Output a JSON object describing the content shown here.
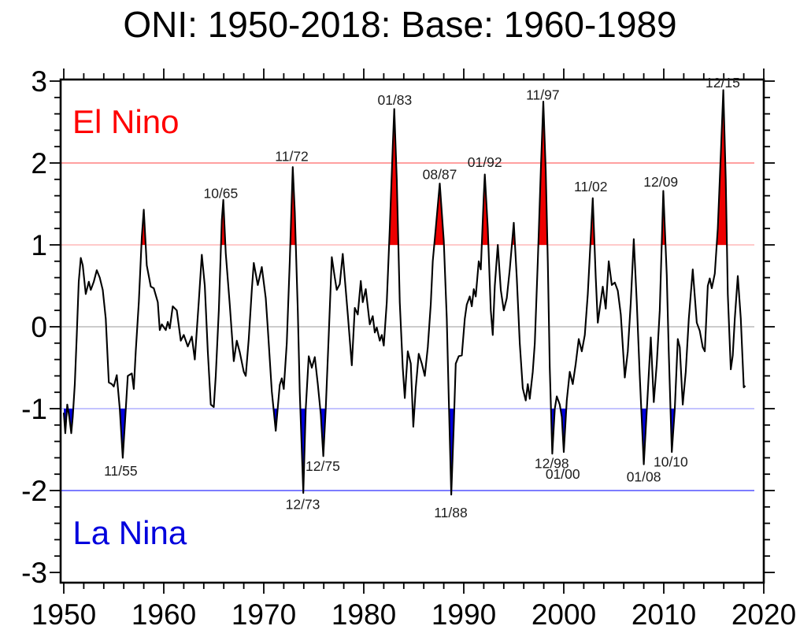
{
  "title": "ONI: 1950-2018: Base: 1960-1989",
  "chart_data": {
    "type": "line",
    "title": "ONI: 1950-2018: Base: 1960-1989",
    "xlabel": "",
    "ylabel": "",
    "grid": false,
    "x_axis": {
      "range": [
        1949.7,
        2020
      ],
      "major_ticks": [
        1950,
        1960,
        1970,
        1980,
        1990,
        2000,
        2010,
        2020
      ],
      "minor_step": 2
    },
    "y_axis": {
      "range": [
        -3.13,
        3.02
      ],
      "major_ticks": [
        -3,
        -2,
        -1,
        0,
        1,
        2,
        3
      ],
      "minor_step": 0.2
    },
    "thresholds": {
      "el_nino": 1,
      "la_nina": -1
    },
    "colors": {
      "line": "#000000",
      "el_nino_fill": "#ee0000",
      "la_nina_fill": "#0000dd",
      "el_nino_text": "#ff0000",
      "la_nina_text": "#0000dd",
      "annotation_text": "#1c1c1c",
      "axis": "#000000"
    },
    "reference_lines": [
      {
        "y": 2,
        "color": "#ff8080"
      },
      {
        "y": 1,
        "color": "#ffb8b8"
      },
      {
        "y": 0,
        "color": "#bcbcbc"
      },
      {
        "y": -1,
        "color": "#b0b0ff"
      },
      {
        "y": -2,
        "color": "#5050ff"
      }
    ],
    "region_labels": [
      {
        "id": "el-nino",
        "text": "El Nino",
        "x": 1956.2,
        "y": 2.5,
        "color": "#ff0000"
      },
      {
        "id": "la-nina",
        "text": "La Nina",
        "x": 1956.6,
        "y": -2.52,
        "color": "#0000dd"
      }
    ],
    "annotations": [
      {
        "text": "10/65",
        "x": 1965.7,
        "y": 1.63
      },
      {
        "text": "11/72",
        "x": 1972.8,
        "y": 2.08
      },
      {
        "text": "01/83",
        "x": 1983.1,
        "y": 2.77
      },
      {
        "text": "08/87",
        "x": 1987.6,
        "y": 1.86
      },
      {
        "text": "01/92",
        "x": 1992.1,
        "y": 2.01
      },
      {
        "text": "11/97",
        "x": 1997.9,
        "y": 2.83
      },
      {
        "text": "11/02",
        "x": 2002.7,
        "y": 1.71
      },
      {
        "text": "12/09",
        "x": 2009.7,
        "y": 1.77
      },
      {
        "text": "12/15",
        "x": 2015.9,
        "y": 2.98
      },
      {
        "text": "11/55",
        "x": 1955.7,
        "y": -1.76
      },
      {
        "text": "12/73",
        "x": 1973.9,
        "y": -2.17
      },
      {
        "text": "12/75",
        "x": 1975.9,
        "y": -1.7
      },
      {
        "text": "11/88",
        "x": 1988.7,
        "y": -2.27
      },
      {
        "text": "12/98",
        "x": 1998.8,
        "y": -1.67
      },
      {
        "text": "01/00",
        "x": 1999.9,
        "y": -1.8
      },
      {
        "text": "01/08",
        "x": 2008.0,
        "y": -1.83
      },
      {
        "text": "10/10",
        "x": 2010.7,
        "y": -1.65
      }
    ],
    "series": [
      {
        "name": "ONI",
        "points": [
          [
            1950.0,
            -1.05
          ],
          [
            1950.15,
            -1.3
          ],
          [
            1950.35,
            -0.95
          ],
          [
            1950.55,
            -1.1
          ],
          [
            1950.75,
            -1.3
          ],
          [
            1950.9,
            -1.1
          ],
          [
            1951.1,
            -0.7
          ],
          [
            1951.3,
            -0.1
          ],
          [
            1951.5,
            0.55
          ],
          [
            1951.7,
            0.84
          ],
          [
            1951.9,
            0.75
          ],
          [
            1952.2,
            0.4
          ],
          [
            1952.5,
            0.55
          ],
          [
            1952.7,
            0.45
          ],
          [
            1953.0,
            0.55
          ],
          [
            1953.3,
            0.69
          ],
          [
            1953.6,
            0.6
          ],
          [
            1953.9,
            0.45
          ],
          [
            1954.2,
            0.1
          ],
          [
            1954.5,
            -0.68
          ],
          [
            1954.8,
            -0.7
          ],
          [
            1955.0,
            -0.73
          ],
          [
            1955.3,
            -0.59
          ],
          [
            1955.6,
            -1.0
          ],
          [
            1955.9,
            -1.6
          ],
          [
            1956.1,
            -1.2
          ],
          [
            1956.4,
            -0.6
          ],
          [
            1956.8,
            -0.57
          ],
          [
            1957.0,
            -0.76
          ],
          [
            1957.2,
            -0.3
          ],
          [
            1957.5,
            0.3
          ],
          [
            1957.8,
            1.1
          ],
          [
            1958.0,
            1.43
          ],
          [
            1958.3,
            0.75
          ],
          [
            1958.7,
            0.49
          ],
          [
            1959.0,
            0.47
          ],
          [
            1959.4,
            0.3
          ],
          [
            1959.6,
            -0.04
          ],
          [
            1959.8,
            0.03
          ],
          [
            1960.2,
            -0.04
          ],
          [
            1960.4,
            0.06
          ],
          [
            1960.6,
            -0.02
          ],
          [
            1960.9,
            0.25
          ],
          [
            1961.3,
            0.2
          ],
          [
            1961.7,
            -0.17
          ],
          [
            1962.0,
            -0.1
          ],
          [
            1962.4,
            -0.24
          ],
          [
            1962.8,
            -0.12
          ],
          [
            1963.1,
            -0.4
          ],
          [
            1963.5,
            0.3
          ],
          [
            1963.8,
            0.88
          ],
          [
            1964.1,
            0.5
          ],
          [
            1964.4,
            -0.3
          ],
          [
            1964.7,
            -0.95
          ],
          [
            1965.0,
            -0.98
          ],
          [
            1965.2,
            -0.6
          ],
          [
            1965.5,
            0.2
          ],
          [
            1965.8,
            1.3
          ],
          [
            1965.95,
            1.55
          ],
          [
            1966.2,
            0.9
          ],
          [
            1966.6,
            0.27
          ],
          [
            1967.0,
            -0.42
          ],
          [
            1967.3,
            -0.17
          ],
          [
            1967.6,
            -0.31
          ],
          [
            1968.0,
            -0.55
          ],
          [
            1968.2,
            -0.6
          ],
          [
            1968.5,
            -0.15
          ],
          [
            1968.8,
            0.45
          ],
          [
            1969.0,
            0.78
          ],
          [
            1969.4,
            0.51
          ],
          [
            1969.8,
            0.73
          ],
          [
            1970.2,
            0.35
          ],
          [
            1970.4,
            -0.02
          ],
          [
            1970.8,
            -0.79
          ],
          [
            1971.2,
            -1.27
          ],
          [
            1971.6,
            -0.71
          ],
          [
            1971.8,
            -0.63
          ],
          [
            1972.0,
            -0.76
          ],
          [
            1972.3,
            -0.2
          ],
          [
            1972.6,
            0.8
          ],
          [
            1972.9,
            1.95
          ],
          [
            1973.1,
            1.4
          ],
          [
            1973.4,
            0.2
          ],
          [
            1973.6,
            -0.8
          ],
          [
            1973.95,
            -2.03
          ],
          [
            1974.2,
            -1.0
          ],
          [
            1974.5,
            -0.36
          ],
          [
            1974.8,
            -0.5
          ],
          [
            1975.1,
            -0.37
          ],
          [
            1975.4,
            -0.7
          ],
          [
            1975.7,
            -1.07
          ],
          [
            1975.95,
            -1.58
          ],
          [
            1976.2,
            -1.0
          ],
          [
            1976.5,
            -0.1
          ],
          [
            1976.8,
            0.85
          ],
          [
            1977.1,
            0.6
          ],
          [
            1977.3,
            0.45
          ],
          [
            1977.6,
            0.52
          ],
          [
            1977.9,
            0.89
          ],
          [
            1978.4,
            0.15
          ],
          [
            1978.8,
            -0.47
          ],
          [
            1979.1,
            0.23
          ],
          [
            1979.4,
            0.15
          ],
          [
            1979.7,
            0.56
          ],
          [
            1979.9,
            0.3
          ],
          [
            1980.2,
            0.46
          ],
          [
            1980.6,
            0.03
          ],
          [
            1980.9,
            0.13
          ],
          [
            1981.1,
            -0.07
          ],
          [
            1981.3,
            -0.01
          ],
          [
            1981.6,
            -0.17
          ],
          [
            1981.8,
            -0.1
          ],
          [
            1982.0,
            -0.23
          ],
          [
            1982.3,
            0.3
          ],
          [
            1982.6,
            1.2
          ],
          [
            1982.9,
            2.2
          ],
          [
            1983.05,
            2.66
          ],
          [
            1983.3,
            1.8
          ],
          [
            1983.6,
            0.3
          ],
          [
            1983.9,
            -0.5
          ],
          [
            1984.1,
            -0.87
          ],
          [
            1984.4,
            -0.3
          ],
          [
            1984.7,
            -0.45
          ],
          [
            1984.95,
            -1.22
          ],
          [
            1985.2,
            -0.75
          ],
          [
            1985.5,
            -0.33
          ],
          [
            1985.8,
            -0.45
          ],
          [
            1986.1,
            -0.6
          ],
          [
            1986.4,
            -0.25
          ],
          [
            1986.7,
            0.28
          ],
          [
            1986.9,
            0.8
          ],
          [
            1987.2,
            1.2
          ],
          [
            1987.6,
            1.75
          ],
          [
            1988.0,
            1.05
          ],
          [
            1988.3,
            0.1
          ],
          [
            1988.5,
            -0.9
          ],
          [
            1988.75,
            -2.05
          ],
          [
            1989.0,
            -1.2
          ],
          [
            1989.2,
            -0.45
          ],
          [
            1989.5,
            -0.36
          ],
          [
            1989.8,
            -0.35
          ],
          [
            1990.1,
            0.1
          ],
          [
            1990.3,
            0.27
          ],
          [
            1990.6,
            0.37
          ],
          [
            1990.8,
            0.25
          ],
          [
            1991.0,
            0.46
          ],
          [
            1991.2,
            0.37
          ],
          [
            1991.5,
            0.8
          ],
          [
            1991.7,
            0.7
          ],
          [
            1992.0,
            1.6
          ],
          [
            1992.1,
            1.86
          ],
          [
            1992.4,
            1.2
          ],
          [
            1992.7,
            0.2
          ],
          [
            1992.9,
            -0.1
          ],
          [
            1993.1,
            0.5
          ],
          [
            1993.4,
            1.0
          ],
          [
            1993.7,
            0.45
          ],
          [
            1994.0,
            0.2
          ],
          [
            1994.3,
            0.35
          ],
          [
            1994.6,
            0.7
          ],
          [
            1995.0,
            1.27
          ],
          [
            1995.3,
            0.6
          ],
          [
            1995.6,
            -0.2
          ],
          [
            1995.9,
            -0.75
          ],
          [
            1996.2,
            -0.9
          ],
          [
            1996.4,
            -0.7
          ],
          [
            1996.6,
            -0.88
          ],
          [
            1996.9,
            -0.55
          ],
          [
            1997.1,
            -0.2
          ],
          [
            1997.4,
            0.8
          ],
          [
            1997.7,
            1.9
          ],
          [
            1997.95,
            2.75
          ],
          [
            1998.2,
            1.9
          ],
          [
            1998.4,
            0.8
          ],
          [
            1998.6,
            -0.5
          ],
          [
            1998.85,
            -1.55
          ],
          [
            1999.1,
            -1.0
          ],
          [
            1999.3,
            -0.85
          ],
          [
            1999.6,
            -0.95
          ],
          [
            1999.8,
            -1.1
          ],
          [
            2000.0,
            -1.53
          ],
          [
            2000.3,
            -0.9
          ],
          [
            2000.6,
            -0.55
          ],
          [
            2000.9,
            -0.7
          ],
          [
            2001.2,
            -0.45
          ],
          [
            2001.5,
            -0.15
          ],
          [
            2001.8,
            -0.3
          ],
          [
            2002.1,
            -0.1
          ],
          [
            2002.4,
            0.4
          ],
          [
            2002.7,
            1.1
          ],
          [
            2002.9,
            1.57
          ],
          [
            2003.2,
            0.6
          ],
          [
            2003.4,
            0.05
          ],
          [
            2003.9,
            0.49
          ],
          [
            2004.2,
            0.22
          ],
          [
            2004.5,
            0.8
          ],
          [
            2004.8,
            0.51
          ],
          [
            2005.1,
            0.54
          ],
          [
            2005.4,
            0.44
          ],
          [
            2005.7,
            0.15
          ],
          [
            2006.1,
            -0.62
          ],
          [
            2006.4,
            -0.3
          ],
          [
            2006.7,
            0.3
          ],
          [
            2007.0,
            1.07
          ],
          [
            2007.3,
            0.3
          ],
          [
            2007.6,
            -0.6
          ],
          [
            2008.0,
            -1.68
          ],
          [
            2008.4,
            -0.8
          ],
          [
            2008.7,
            -0.13
          ],
          [
            2009.0,
            -0.92
          ],
          [
            2009.3,
            -0.45
          ],
          [
            2009.6,
            0.2
          ],
          [
            2009.95,
            1.66
          ],
          [
            2010.3,
            0.63
          ],
          [
            2010.5,
            -0.3
          ],
          [
            2010.8,
            -1.53
          ],
          [
            2011.1,
            -1.0
          ],
          [
            2011.4,
            -0.15
          ],
          [
            2011.6,
            -0.25
          ],
          [
            2011.9,
            -0.95
          ],
          [
            2012.2,
            -0.55
          ],
          [
            2012.5,
            0.1
          ],
          [
            2012.9,
            0.7
          ],
          [
            2013.3,
            0.05
          ],
          [
            2013.6,
            -0.05
          ],
          [
            2013.9,
            -0.25
          ],
          [
            2014.1,
            -0.3
          ],
          [
            2014.4,
            0.5
          ],
          [
            2014.6,
            0.59
          ],
          [
            2014.8,
            0.47
          ],
          [
            2015.1,
            0.65
          ],
          [
            2015.4,
            1.2
          ],
          [
            2015.7,
            2.1
          ],
          [
            2015.95,
            2.89
          ],
          [
            2016.2,
            1.8
          ],
          [
            2016.4,
            0.4
          ],
          [
            2016.7,
            -0.52
          ],
          [
            2016.9,
            -0.35
          ],
          [
            2017.1,
            0.1
          ],
          [
            2017.4,
            0.62
          ],
          [
            2017.7,
            0.1
          ],
          [
            2018.0,
            -0.74
          ],
          [
            2018.15,
            -0.72
          ]
        ]
      }
    ]
  }
}
